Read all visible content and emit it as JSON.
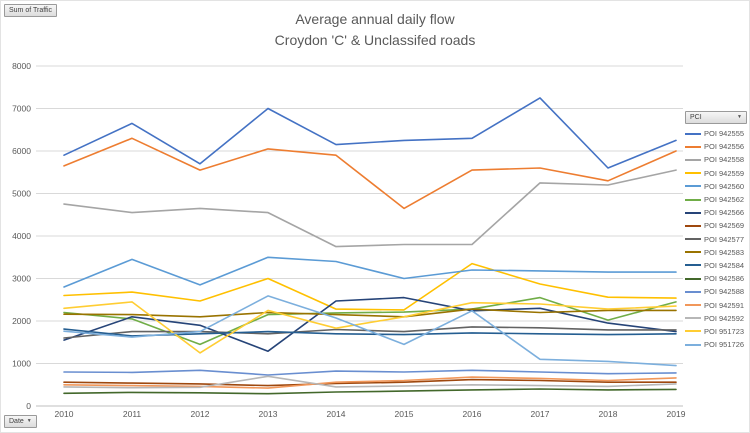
{
  "buttons": {
    "value_field": "Sum of Traffic",
    "axis_field": "Date",
    "legend_field": "PCI"
  },
  "colors": {
    "text": "#595959",
    "grid": "#d9d9d9",
    "axis": "#bfbfbf"
  },
  "chart_data": {
    "type": "line",
    "title": "Average annual daily flow",
    "subtitle": "Croydon 'C' & Unclassifed roads",
    "x": [
      "2010",
      "2011",
      "2012",
      "2013",
      "2014",
      "2015",
      "2016",
      "2017",
      "2018",
      "2019"
    ],
    "xlabel": "",
    "ylabel": "",
    "ylim": [
      0,
      8000
    ],
    "ytick_step": 1000,
    "grid": true,
    "legend_position": "right",
    "series": [
      {
        "name": "POI 942555",
        "color": "#4472C4",
        "values": [
          5900,
          6650,
          5700,
          7000,
          6150,
          6250,
          6300,
          7250,
          5600,
          6250
        ]
      },
      {
        "name": "POI 942556",
        "color": "#ED7D31",
        "values": [
          5650,
          6300,
          5550,
          6050,
          5900,
          4650,
          5550,
          5600,
          5300,
          6000
        ]
      },
      {
        "name": "POI 942558",
        "color": "#A5A5A5",
        "values": [
          4750,
          4550,
          4650,
          4550,
          3750,
          3800,
          3800,
          5250,
          5200,
          5550
        ]
      },
      {
        "name": "POI 942559",
        "color": "#FFC000",
        "values": [
          2600,
          2680,
          2470,
          3000,
          2280,
          2260,
          3350,
          2870,
          2560,
          2540
        ]
      },
      {
        "name": "POI 942560",
        "color": "#5B9BD5",
        "values": [
          2800,
          3450,
          2850,
          3500,
          3400,
          3000,
          3200,
          3180,
          3150,
          3150
        ]
      },
      {
        "name": "POI 942562",
        "color": "#70AD47",
        "values": [
          2200,
          2050,
          1450,
          2150,
          2190,
          2210,
          2280,
          2550,
          2020,
          2450
        ]
      },
      {
        "name": "POI 942566",
        "color": "#264478",
        "values": [
          1550,
          2100,
          1900,
          1290,
          2470,
          2550,
          2240,
          2300,
          1950,
          1750
        ]
      },
      {
        "name": "POI 942569",
        "color": "#9E480E",
        "values": [
          560,
          540,
          520,
          480,
          530,
          560,
          620,
          600,
          560,
          560
        ]
      },
      {
        "name": "POI 942577",
        "color": "#636363",
        "values": [
          1600,
          1750,
          1750,
          1700,
          1800,
          1750,
          1860,
          1840,
          1790,
          1790
        ]
      },
      {
        "name": "POI 942583",
        "color": "#997300",
        "values": [
          2160,
          2150,
          2100,
          2200,
          2150,
          2100,
          2280,
          2200,
          2250,
          2250
        ]
      },
      {
        "name": "POI 942584",
        "color": "#255E91",
        "values": [
          1810,
          1650,
          1700,
          1750,
          1700,
          1680,
          1720,
          1700,
          1680,
          1700
        ]
      },
      {
        "name": "POI 942586",
        "color": "#43682B",
        "values": [
          300,
          320,
          310,
          290,
          330,
          350,
          380,
          400,
          380,
          390
        ]
      },
      {
        "name": "POI 942588",
        "color": "#698ED0",
        "values": [
          800,
          790,
          840,
          730,
          820,
          800,
          840,
          800,
          760,
          780
        ]
      },
      {
        "name": "POI 942591",
        "color": "#F1975A",
        "values": [
          500,
          480,
          460,
          420,
          560,
          600,
          680,
          650,
          600,
          660
        ]
      },
      {
        "name": "POI 942592",
        "color": "#B7B7B7",
        "values": [
          450,
          430,
          440,
          700,
          450,
          470,
          500,
          480,
          460,
          520
        ]
      },
      {
        "name": "POI 951723",
        "color": "#FFCD33",
        "values": [
          2300,
          2450,
          1250,
          2250,
          1830,
          2100,
          2430,
          2400,
          2280,
          2350
        ]
      },
      {
        "name": "POI 951726",
        "color": "#7CAFDD",
        "values": [
          1760,
          1620,
          1750,
          2590,
          2070,
          1450,
          2240,
          1100,
          1050,
          950
        ]
      }
    ]
  }
}
